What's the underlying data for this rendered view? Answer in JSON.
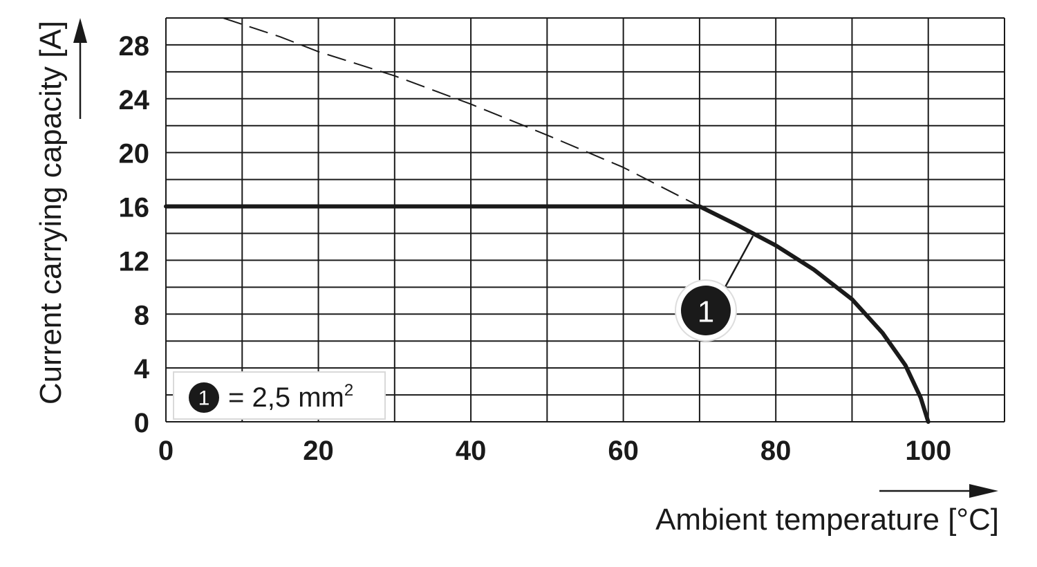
{
  "chart_data": {
    "type": "line",
    "title": "",
    "xlabel": "Ambient temperature [°C]",
    "ylabel": "Current carrying capacity [A]",
    "xlim": [
      0,
      110
    ],
    "ylim": [
      0,
      30
    ],
    "x_grid_step": 10,
    "y_grid_step": 2,
    "x_ticks": [
      0,
      20,
      40,
      60,
      80,
      100
    ],
    "y_ticks": [
      0,
      4,
      8,
      12,
      16,
      20,
      24,
      28
    ],
    "grid": true,
    "series": [
      {
        "marker_label": "1",
        "style": "solid",
        "color": "#1a1a1a",
        "points": [
          [
            0,
            16
          ],
          [
            70,
            16
          ],
          [
            75,
            14.6
          ],
          [
            80,
            13.1
          ],
          [
            85,
            11.3
          ],
          [
            90,
            9.1
          ],
          [
            94,
            6.6
          ],
          [
            97,
            4.2
          ],
          [
            99,
            1.8
          ],
          [
            100,
            0
          ]
        ]
      },
      {
        "style": "dashed",
        "color": "#1a1a1a",
        "points": [
          [
            7.5,
            30
          ],
          [
            15,
            28.6
          ],
          [
            20,
            27.5
          ],
          [
            30,
            25.7
          ],
          [
            40,
            23.6
          ],
          [
            50,
            21.3
          ],
          [
            60,
            18.9
          ],
          [
            70,
            16
          ]
        ]
      }
    ],
    "annotation": {
      "label": "1",
      "target": [
        77,
        13.8
      ],
      "position": "below-right"
    },
    "legend": {
      "position": "bottom-left",
      "marker": "1",
      "text": "= 2,5 mm",
      "superscript": "2"
    }
  }
}
